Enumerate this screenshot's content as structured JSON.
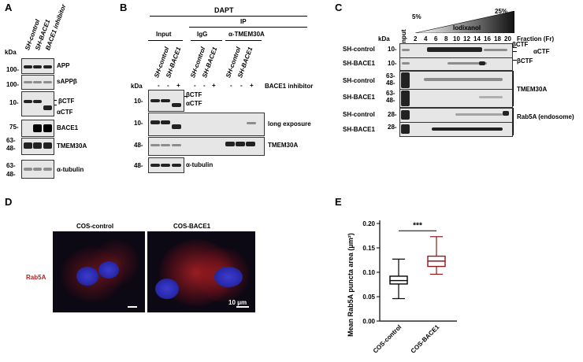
{
  "panels": {
    "A": {
      "label": "A",
      "kda": "kDa",
      "lanes": [
        "SH-control",
        "SH-BACE1",
        "BACE1 inhibitor"
      ],
      "rows": [
        {
          "label": "APP",
          "markers": [
            "100-"
          ]
        },
        {
          "label": "sAPPβ",
          "markers": [
            "100-"
          ]
        },
        {
          "label": "βCTF",
          "label2": "αCTF",
          "markers": [
            "10-"
          ]
        },
        {
          "label": "BACE1",
          "markers": [
            "75-"
          ]
        },
        {
          "label": "TMEM30A",
          "markers": [
            "63-",
            "48-"
          ]
        },
        {
          "label": "α-tubulin",
          "markers": [
            "63-",
            "48-"
          ]
        }
      ]
    },
    "B": {
      "label": "B",
      "dapt": "DAPT",
      "ip": "IP",
      "groups": [
        "Input",
        "IgG",
        "α-TMEM30A"
      ],
      "lanes": [
        "SH-control",
        "SH-BACE1",
        "SH-control",
        "SH-BACE1",
        "SH-control",
        "SH-BACE1"
      ],
      "inhibitor_signs": [
        "-",
        "-",
        "+",
        "-",
        "-",
        "+",
        "-",
        "-",
        "+"
      ],
      "inhibitor_label": "BACE1 inhibitor",
      "kda": "kDa",
      "rows": [
        {
          "label": "βCTF",
          "label2": "αCTF",
          "marker": "10-"
        },
        {
          "label": "long exposure",
          "marker": "10-"
        },
        {
          "label": "TMEM30A",
          "marker": "48-"
        },
        {
          "label": "α-tubulin",
          "marker": "48-"
        }
      ]
    },
    "C": {
      "label": "C",
      "gradient_low": "5%",
      "gradient_mid": "Iodixanol",
      "gradient_high": "25%",
      "kda": "kDa",
      "input": "Input",
      "fractions": [
        "2",
        "4",
        "6",
        "8",
        "10",
        "12",
        "14",
        "16",
        "18",
        "20"
      ],
      "fraction_label": "Fraction (Fr)",
      "rows": [
        {
          "sample": "SH-control",
          "marker": "10-",
          "right": "βCTF",
          "right2": "αCTF"
        },
        {
          "sample": "SH-BACE1",
          "marker": "10-",
          "right": "βCTF"
        },
        {
          "sample": "SH-control",
          "marker": "63- 48-",
          "right": "TMEM30A"
        },
        {
          "sample": "SH-BACE1",
          "marker": "63- 48-",
          "right": ""
        },
        {
          "sample": "SH-control",
          "marker": "28-",
          "right": "Rab5A (endosome)"
        },
        {
          "sample": "SH-BACE1",
          "marker": "28-",
          "right": ""
        }
      ]
    },
    "D": {
      "label": "D",
      "titles": [
        "COS-control",
        "COS-BACE1"
      ],
      "stain": "Rab5A",
      "scale": "10 μm"
    },
    "E": {
      "label": "E",
      "significance": "***",
      "colors": {
        "control": "#000000",
        "bace1": "#8b1a1a"
      }
    }
  },
  "chart_data": {
    "type": "boxplot",
    "title": "",
    "ylabel": "Mean Rab5A puncta area (μm²)",
    "ylim": [
      0.0,
      0.2
    ],
    "yticks": [
      "0.00",
      "0.05",
      "0.10",
      "0.15",
      "0.20"
    ],
    "categories": [
      "COS-control",
      "COS-BACE1"
    ],
    "series": [
      {
        "name": "COS-control",
        "min": 0.046,
        "q1": 0.076,
        "median": 0.083,
        "q3": 0.092,
        "max": 0.127
      },
      {
        "name": "COS-BACE1",
        "min": 0.096,
        "q1": 0.112,
        "median": 0.123,
        "q3": 0.133,
        "max": 0.173
      }
    ]
  }
}
